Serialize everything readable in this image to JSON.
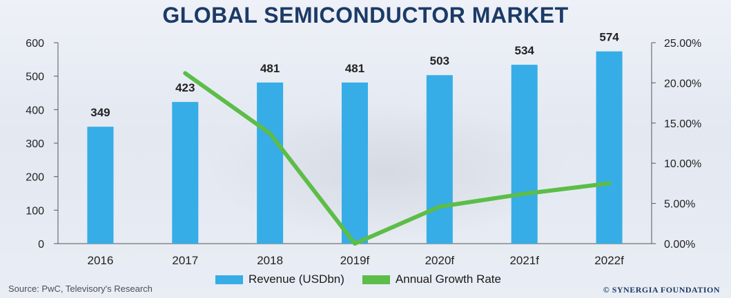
{
  "title": "GLOBAL SEMICONDUCTOR MARKET",
  "source": "Source: PwC, Televisory's Research",
  "brand": "© SYNERGIA FOUNDATION",
  "legend": {
    "revenue": "Revenue (USDbn)",
    "growth": "Annual Growth Rate"
  },
  "colors": {
    "bar": "#36ade6",
    "line": "#5cbd48",
    "title": "#1b3a67"
  },
  "chart_data": {
    "type": "bar",
    "categories": [
      "2016",
      "2017",
      "2018",
      "2019f",
      "2020f",
      "2021f",
      "2022f"
    ],
    "series": [
      {
        "name": "Revenue (USDbn)",
        "type": "bar",
        "axis": "left",
        "values": [
          349,
          423,
          481,
          481,
          503,
          534,
          574
        ],
        "labels": [
          "349",
          "423",
          "481",
          "481",
          "503",
          "534",
          "574"
        ]
      },
      {
        "name": "Annual Growth Rate",
        "type": "line",
        "axis": "right",
        "values": [
          null,
          21.2,
          13.7,
          0.0,
          4.6,
          6.2,
          7.5
        ]
      }
    ],
    "yleft": {
      "min": 0,
      "max": 600,
      "ticks": [
        0,
        100,
        200,
        300,
        400,
        500,
        600
      ]
    },
    "yright": {
      "min": 0,
      "max": 25,
      "ticks": [
        "0.00%",
        "5.00%",
        "10.00%",
        "15.00%",
        "20.00%",
        "25.00%"
      ]
    },
    "legend_position": "bottom"
  }
}
